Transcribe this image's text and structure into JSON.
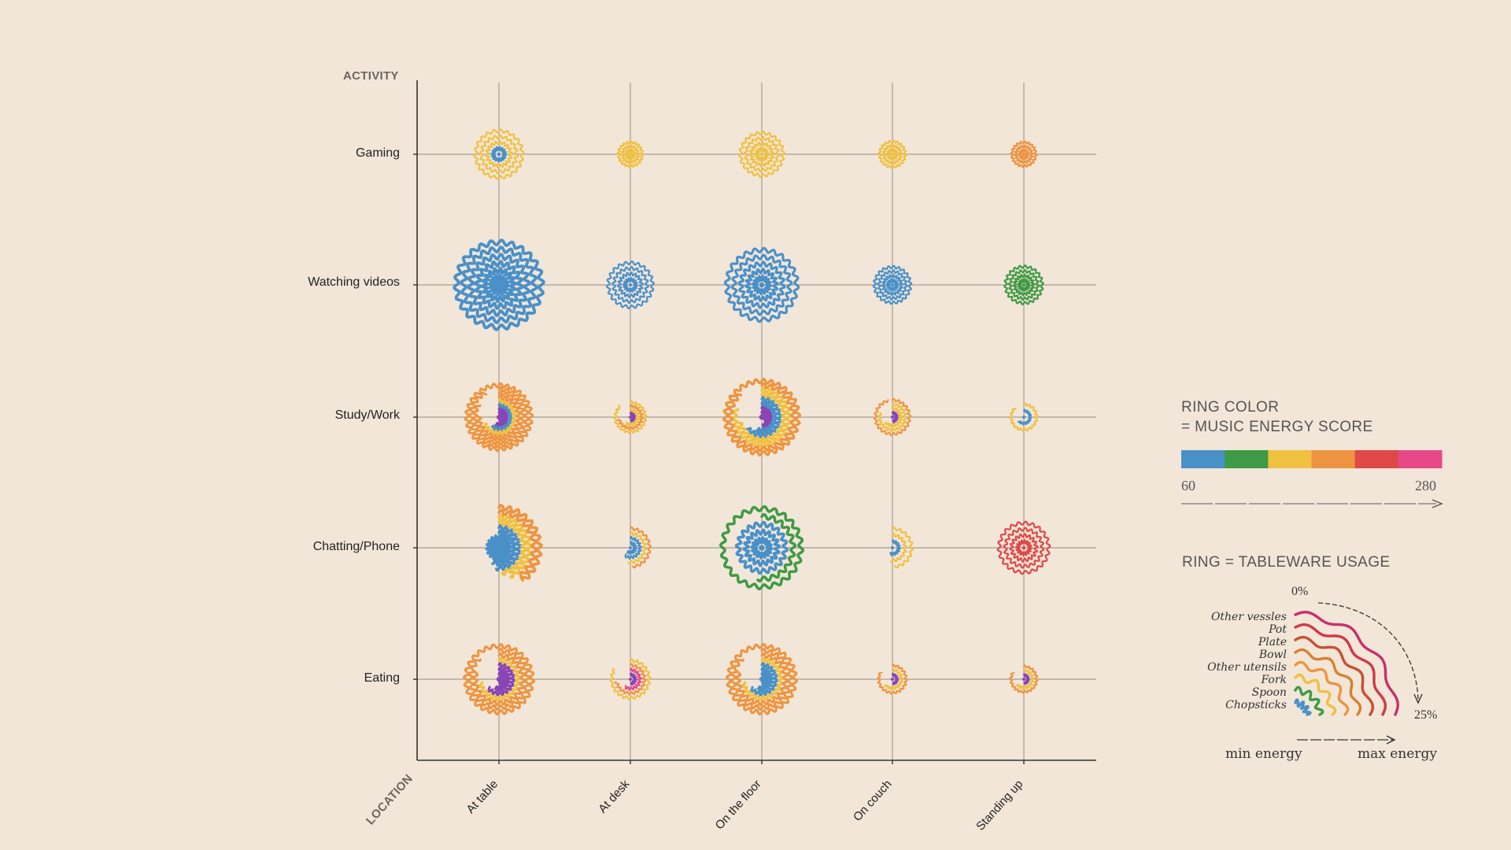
{
  "chart_data": {
    "type": "radial-glyph-grid",
    "y_axis_title": "ACTIVITY",
    "x_axis_title": "LOCATION",
    "rows": [
      "Gaming",
      "Watching videos",
      "Study/Work",
      "Chatting/Phone",
      "Eating"
    ],
    "columns": [
      "At table",
      "At desk",
      "On the floor",
      "On couch",
      "Standing up"
    ],
    "tableware": [
      "Chopsticks",
      "Spoon",
      "Fork",
      "Other utensils",
      "Bowl",
      "Plate",
      "Pot",
      "Other vessles"
    ],
    "energy_scale": {
      "min": 60,
      "max": 280,
      "min_label": "60",
      "max_label": "280"
    },
    "energy_colors": [
      "#4a90c8",
      "#3e9a44",
      "#f0c040",
      "#ee9440",
      "#e04848",
      "#e84888"
    ],
    "cells": [
      {
        "row": "Gaming",
        "column": "At table",
        "rings": [
          {
            "c": 0,
            "u": 25
          },
          {
            "c": 2,
            "u": 25
          },
          {
            "c": 2,
            "u": 25
          },
          {
            "c": 2,
            "u": 25
          }
        ]
      },
      {
        "row": "Gaming",
        "column": "At desk",
        "rings": [
          {
            "c": 2,
            "u": 25
          },
          {
            "c": 2,
            "u": 25
          },
          {
            "c": 2,
            "u": 25
          }
        ]
      },
      {
        "row": "Gaming",
        "column": "On the floor",
        "rings": [
          {
            "c": 2,
            "u": 25
          },
          {
            "c": 2,
            "u": 25
          },
          {
            "c": 2,
            "u": 25
          },
          {
            "c": 2,
            "u": 25
          }
        ]
      },
      {
        "row": "Gaming",
        "column": "On couch",
        "rings": [
          {
            "c": 2,
            "u": 25
          },
          {
            "c": 2,
            "u": 25
          },
          {
            "c": 2,
            "u": 25
          }
        ]
      },
      {
        "row": "Gaming",
        "column": "Standing up",
        "rings": [
          {
            "c": 3,
            "u": 25
          },
          {
            "c": 3,
            "u": 25
          },
          {
            "c": 3,
            "u": 25
          }
        ]
      },
      {
        "row": "Watching videos",
        "column": "At table",
        "rings": [
          {
            "c": 0,
            "u": 25
          },
          {
            "c": 0,
            "u": 25
          },
          {
            "c": 0,
            "u": 25
          },
          {
            "c": 0,
            "u": 25
          },
          {
            "c": 0,
            "u": 25
          },
          {
            "c": 0,
            "u": 25
          }
        ]
      },
      {
        "row": "Watching videos",
        "column": "At desk",
        "rings": [
          {
            "c": 0,
            "u": 25
          },
          {
            "c": 0,
            "u": 25
          },
          {
            "c": 0,
            "u": 25
          },
          {
            "c": 0,
            "u": 25
          }
        ]
      },
      {
        "row": "Watching videos",
        "column": "On the floor",
        "rings": [
          {
            "c": 0,
            "u": 25
          },
          {
            "c": 0,
            "u": 25
          },
          {
            "c": 0,
            "u": 25
          },
          {
            "c": 0,
            "u": 25
          },
          {
            "c": 0,
            "u": 25
          }
        ]
      },
      {
        "row": "Watching videos",
        "column": "On couch",
        "rings": [
          {
            "c": 0,
            "u": 25
          },
          {
            "c": 0,
            "u": 25
          },
          {
            "c": 0,
            "u": 25
          },
          {
            "c": 0,
            "u": 25
          }
        ]
      },
      {
        "row": "Watching videos",
        "column": "Standing up",
        "rings": [
          {
            "c": 1,
            "u": 25
          },
          {
            "c": 1,
            "u": 25
          },
          {
            "c": 1,
            "u": 25
          },
          {
            "c": 1,
            "u": 25
          }
        ]
      },
      {
        "row": "Study/Work",
        "column": "At table",
        "rings": [
          {
            "c": "#8a44b4",
            "u": 12
          },
          {
            "c": "#8a44b4",
            "u": 14
          },
          {
            "c": 0,
            "u": 15
          },
          {
            "c": 2,
            "u": 17
          },
          {
            "c": 3,
            "u": 19
          },
          {
            "c": 3,
            "u": 21
          },
          {
            "c": 3,
            "u": 23
          },
          {
            "c": 3,
            "u": 25
          }
        ]
      },
      {
        "row": "Study/Work",
        "column": "At desk",
        "rings": [
          {
            "c": "#8a44b4",
            "u": 12
          },
          {
            "c": 2,
            "u": 15
          },
          {
            "c": 3,
            "u": 18
          },
          {
            "c": 2,
            "u": 22
          }
        ]
      },
      {
        "row": "Study/Work",
        "column": "On the floor",
        "rings": [
          {
            "c": "#8a44b4",
            "u": 10
          },
          {
            "c": "#8a44b4",
            "u": 12
          },
          {
            "c": 0,
            "u": 14
          },
          {
            "c": 0,
            "u": 16
          },
          {
            "c": 2,
            "u": 18
          },
          {
            "c": 2,
            "u": 20
          },
          {
            "c": 3,
            "u": 22
          },
          {
            "c": 3,
            "u": 25
          }
        ]
      },
      {
        "row": "Study/Work",
        "column": "On couch",
        "rings": [
          {
            "c": "#8a44b4",
            "u": 12
          },
          {
            "c": 2,
            "u": 16
          },
          {
            "c": 2,
            "u": 20
          },
          {
            "c": 3,
            "u": 24
          }
        ]
      },
      {
        "row": "Study/Work",
        "column": "Standing up",
        "rings": [
          {
            "c": 0,
            "u": 16
          },
          {
            "c": 2,
            "u": 22
          }
        ]
      },
      {
        "row": "Chatting/Phone",
        "column": "At table",
        "rings": [
          {
            "c": 0,
            "u": 25
          },
          {
            "c": 0,
            "u": 25
          },
          {
            "c": 0,
            "u": 14
          },
          {
            "c": 0,
            "u": 13
          },
          {
            "c": 2,
            "u": 12
          },
          {
            "c": 2,
            "u": 11
          },
          {
            "c": 3,
            "u": 10
          },
          {
            "c": 3,
            "u": 10
          }
        ]
      },
      {
        "row": "Chatting/Phone",
        "column": "At desk",
        "rings": [
          {
            "c": 0,
            "u": 15
          },
          {
            "c": 0,
            "u": 15
          },
          {
            "c": 2,
            "u": 13
          },
          {
            "c": 3,
            "u": 12
          }
        ]
      },
      {
        "row": "Chatting/Phone",
        "column": "On the floor",
        "rings": [
          {
            "c": 0,
            "u": 25
          },
          {
            "c": 0,
            "u": 25
          },
          {
            "c": 0,
            "u": 25
          },
          {
            "c": 1,
            "u": 13
          },
          {
            "c": 1,
            "u": 25
          }
        ]
      },
      {
        "row": "Chatting/Phone",
        "column": "On couch",
        "rings": [
          {
            "c": 0,
            "u": 14
          },
          {
            "c": 2,
            "u": 13
          },
          {
            "c": 2,
            "u": 12
          }
        ]
      },
      {
        "row": "Chatting/Phone",
        "column": "Standing up",
        "rings": [
          {
            "c": 4,
            "u": 25
          },
          {
            "c": 4,
            "u": 25
          },
          {
            "c": 4,
            "u": 25
          },
          {
            "c": 4,
            "u": 25
          }
        ]
      },
      {
        "row": "Eating",
        "column": "At table",
        "rings": [
          {
            "c": "#8a44b4",
            "u": 12
          },
          {
            "c": "#8a44b4",
            "u": 14
          },
          {
            "c": "#8a44b4",
            "u": 16
          },
          {
            "c": 2,
            "u": 18
          },
          {
            "c": 3,
            "u": 20
          },
          {
            "c": 3,
            "u": 22
          },
          {
            "c": 3,
            "u": 25
          }
        ]
      },
      {
        "row": "Eating",
        "column": "At desk",
        "rings": [
          {
            "c": "#8a44b4",
            "u": 12
          },
          {
            "c": 5,
            "u": 15
          },
          {
            "c": 3,
            "u": 18
          },
          {
            "c": 2,
            "u": 21
          }
        ]
      },
      {
        "row": "Eating",
        "column": "On the floor",
        "rings": [
          {
            "c": 0,
            "u": 12
          },
          {
            "c": 0,
            "u": 14
          },
          {
            "c": 0,
            "u": 16
          },
          {
            "c": 2,
            "u": 18
          },
          {
            "c": 3,
            "u": 20
          },
          {
            "c": 3,
            "u": 22
          },
          {
            "c": 3,
            "u": 25
          }
        ]
      },
      {
        "row": "Eating",
        "column": "On couch",
        "rings": [
          {
            "c": "#8a44b4",
            "u": 12
          },
          {
            "c": 2,
            "u": 16
          },
          {
            "c": 3,
            "u": 21
          }
        ]
      },
      {
        "row": "Eating",
        "column": "Standing up",
        "rings": [
          {
            "c": "#8a44b4",
            "u": 12
          },
          {
            "c": 2,
            "u": 16
          },
          {
            "c": 3,
            "u": 21
          }
        ]
      }
    ]
  },
  "legend": {
    "color_title_1": "RING COLOR",
    "color_title_2": "= MUSIC ENERGY SCORE",
    "min_label": "60",
    "max_label": "280",
    "usage_title": "RING = TABLEWARE USAGE",
    "zero_pct": "0%",
    "max_pct": "25%",
    "usage_labels": [
      "Other vessles",
      "Pot",
      "Plate",
      "Bowl",
      "Other utensils",
      "Fork",
      "Spoon",
      "Chopsticks"
    ],
    "min_energy": "min energy",
    "max_energy": "max energy"
  }
}
